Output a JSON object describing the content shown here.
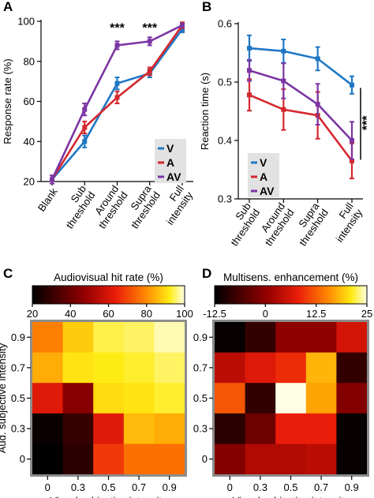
{
  "colors": {
    "V": "#1f77c4",
    "A": "#d4282e",
    "AV": "#7b35a3",
    "legend_bg": "#e2e2e2",
    "hm_border": "#8c8c8c"
  },
  "chart_data": [
    {
      "panel": "A",
      "type": "line",
      "ylabel": "Response rate (%)",
      "categories": [
        "Blank",
        "Sub threshold",
        "Around threshold",
        "Supra threshold",
        "Full intensity"
      ],
      "category_lines": [
        [
          "Blank"
        ],
        [
          "Sub",
          "threshold"
        ],
        [
          "Around",
          "threshold"
        ],
        [
          "Supra",
          "threshold"
        ],
        [
          "Full",
          "intensity"
        ]
      ],
      "ylim": [
        20,
        100
      ],
      "yticks": [
        20,
        40,
        60,
        80,
        100
      ],
      "series": [
        {
          "name": "V",
          "color": "#1f77c4",
          "values": [
            21,
            40,
            69,
            74,
            96
          ],
          "err": [
            2,
            3,
            3,
            2,
            1.5
          ]
        },
        {
          "name": "A",
          "color": "#d4282e",
          "values": [
            21,
            47,
            62,
            75,
            98
          ],
          "err": [
            2,
            3,
            3,
            2,
            1.5
          ]
        },
        {
          "name": "AV",
          "color": "#7b35a3",
          "values": [
            21,
            56,
            88,
            90,
            98
          ],
          "err": [
            2,
            3,
            2,
            2,
            1
          ]
        }
      ],
      "annotations": [
        {
          "text": "***",
          "x": "Around threshold",
          "y": 97
        },
        {
          "text": "***",
          "x": "Supra threshold",
          "y": 97
        }
      ],
      "legend": [
        "V",
        "A",
        "AV"
      ]
    },
    {
      "panel": "B",
      "type": "line",
      "ylabel": "Reaction time (s)",
      "categories": [
        "Sub threshold",
        "Around threshold",
        "Supra threshold",
        "Full intensity"
      ],
      "category_lines": [
        [
          "Sub",
          "threshold"
        ],
        [
          "Around",
          "threshold"
        ],
        [
          "Supra",
          "threshold"
        ],
        [
          "Full",
          "intensity"
        ]
      ],
      "ylim": [
        0.3,
        0.6
      ],
      "yticks": [
        0.3,
        0.4,
        0.5,
        0.6
      ],
      "series": [
        {
          "name": "V",
          "color": "#1f77c4",
          "values": [
            0.558,
            0.553,
            0.54,
            0.495
          ],
          "err": [
            0.022,
            0.02,
            0.02,
            0.015
          ]
        },
        {
          "name": "A",
          "color": "#d4282e",
          "values": [
            0.478,
            0.453,
            0.443,
            0.365
          ],
          "err": [
            0.027,
            0.035,
            0.04,
            0.03
          ]
        },
        {
          "name": "AV",
          "color": "#7b35a3",
          "values": [
            0.52,
            0.502,
            0.462,
            0.4
          ],
          "err": [
            0.018,
            0.03,
            0.035,
            0.032
          ]
        }
      ],
      "annotations": [
        {
          "text": "***",
          "x": "Full intensity",
          "y": 0.43
        }
      ],
      "legend": [
        "V",
        "A",
        "AV"
      ]
    },
    {
      "panel": "C",
      "type": "heatmap",
      "title": "Audiovisual hit rate (%)",
      "xlabel": "Visual subjective intensity",
      "ylabel": "Aud. subjective intensity",
      "x": [
        0,
        0.3,
        0.5,
        0.7,
        0.9
      ],
      "y": [
        0,
        0.3,
        0.5,
        0.7,
        0.9
      ],
      "xticks": [
        "0",
        "0.3",
        "0.5",
        "0.7",
        "0.9"
      ],
      "yticks": [
        "0",
        "0.3",
        "0.5",
        "0.7",
        "0.9"
      ],
      "colorbar": {
        "range": [
          20,
          100
        ],
        "ticks": [
          "20",
          "40",
          "60",
          "80",
          "100"
        ]
      },
      "values": [
        [
          78,
          88,
          94,
          95,
          98
        ],
        [
          84,
          91,
          92,
          93,
          95
        ],
        [
          62,
          45,
          90,
          91,
          93
        ],
        [
          22,
          30,
          62,
          86,
          84
        ],
        [
          20,
          28,
          68,
          76,
          76
        ]
      ]
    },
    {
      "panel": "D",
      "type": "heatmap",
      "title": "Multisens. enhancement (%)",
      "xlabel": "Visual subjective intensity",
      "x": [
        0,
        0.3,
        0.5,
        0.7,
        0.9
      ],
      "y": [
        0,
        0.3,
        0.5,
        0.7,
        0.9
      ],
      "xticks": [
        "0",
        "0.3",
        "0.5",
        "0.7",
        "0.9"
      ],
      "yticks": [
        "0",
        "0.3",
        "0.5",
        "0.7",
        "0.9"
      ],
      "colorbar": {
        "range": [
          -12.5,
          25
        ],
        "ticks": [
          "-12.5",
          "0",
          "12.5",
          "25"
        ]
      },
      "values": [
        [
          -12,
          -8,
          0,
          0,
          6
        ],
        [
          4,
          7,
          9,
          18,
          -8
        ],
        [
          12,
          -8,
          25,
          17,
          -1
        ],
        [
          -9,
          -3,
          8,
          8,
          -12
        ],
        [
          -1,
          3,
          3,
          4,
          -12
        ]
      ]
    }
  ]
}
